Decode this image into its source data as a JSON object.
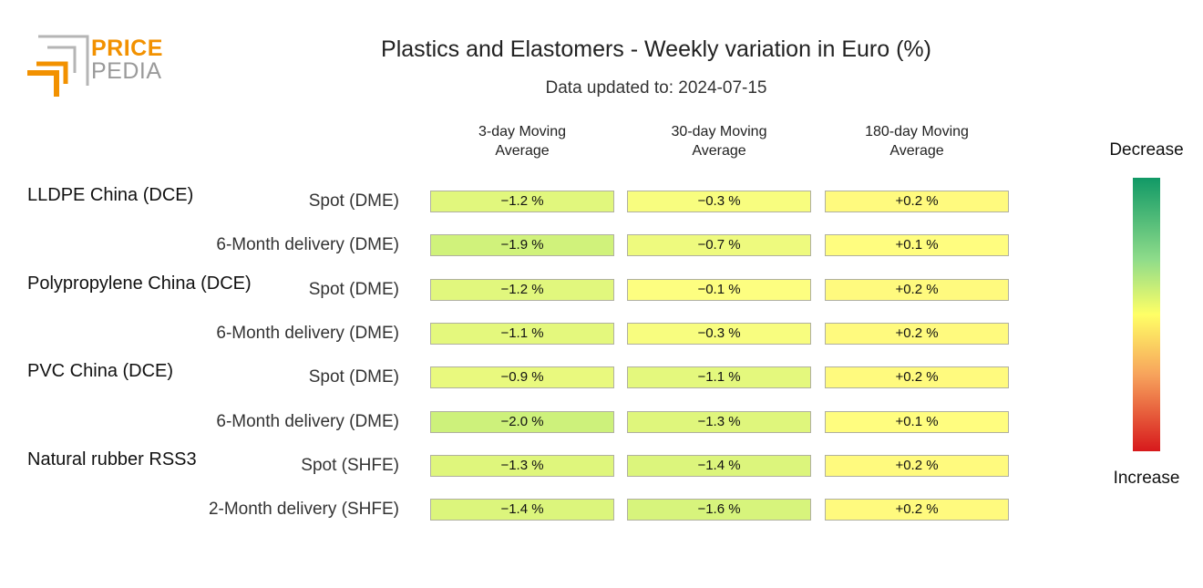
{
  "logo": {
    "line1": "PRICE",
    "line2": "PEDIA"
  },
  "chart_data": {
    "type": "table",
    "title": "Plastics and Elastomers - Weekly variation in Euro (%)",
    "subtitle": "Data updated to: 2024-07-15",
    "columns": [
      "3-day Moving\nAverage",
      "30-day Moving\nAverage",
      "180-day Moving\nAverage"
    ],
    "groups": [
      {
        "name": "LLDPE China (DCE)",
        "rows": [
          {
            "label": "Spot (DME)",
            "values": [
              -1.2,
              -0.3,
              0.2
            ],
            "texts": [
              "−1.2 %",
              "−0.3 %",
              "+0.2 %"
            ]
          },
          {
            "label": "6-Month delivery (DME)",
            "values": [
              -1.9,
              -0.7,
              0.1
            ],
            "texts": [
              "−1.9 %",
              "−0.7 %",
              "+0.1 %"
            ]
          }
        ]
      },
      {
        "name": "Polypropylene China (DCE)",
        "rows": [
          {
            "label": "Spot (DME)",
            "values": [
              -1.2,
              -0.1,
              0.2
            ],
            "texts": [
              "−1.2 %",
              "−0.1 %",
              "+0.2 %"
            ]
          },
          {
            "label": "6-Month delivery (DME)",
            "values": [
              -1.1,
              -0.3,
              0.2
            ],
            "texts": [
              "−1.1 %",
              "−0.3 %",
              "+0.2 %"
            ]
          }
        ]
      },
      {
        "name": "PVC China (DCE)",
        "rows": [
          {
            "label": "Spot (DME)",
            "values": [
              -0.9,
              -1.1,
              0.2
            ],
            "texts": [
              "−0.9 %",
              "−1.1 %",
              "+0.2 %"
            ]
          },
          {
            "label": "6-Month delivery (DME)",
            "values": [
              -2.0,
              -1.3,
              0.1
            ],
            "texts": [
              "−2.0 %",
              "−1.3 %",
              "+0.1 %"
            ]
          }
        ]
      },
      {
        "name": "Natural rubber RSS3",
        "rows": [
          {
            "label": "Spot (SHFE)",
            "values": [
              -1.3,
              -1.4,
              0.2
            ],
            "texts": [
              "−1.3 %",
              "−1.4 %",
              "+0.2 %"
            ]
          },
          {
            "label": "2-Month delivery (SHFE)",
            "values": [
              -1.4,
              -1.6,
              0.2
            ],
            "texts": [
              "−1.4 %",
              "−1.6 %",
              "+0.2 %"
            ]
          }
        ]
      }
    ],
    "color_scale": {
      "top_label": "Decrease",
      "bottom_label": "Increase",
      "colors": [
        "#119966",
        "#8fdc8a",
        "#ffff66",
        "#f7a35c",
        "#d7191c"
      ]
    }
  }
}
